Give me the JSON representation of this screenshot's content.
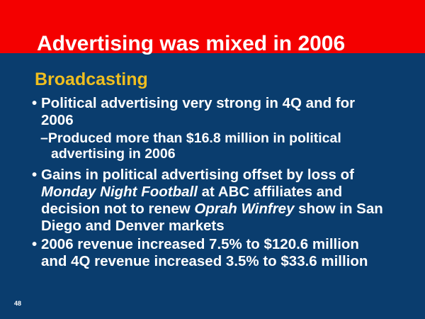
{
  "slide": {
    "title": "Advertising was mixed in 2006",
    "page_number": "48",
    "colors": {
      "banner_red": "#F40000",
      "background_navy": "#0A3D6E",
      "heading_gold": "#EFBE1F",
      "body_text": "#FFFFFF"
    }
  },
  "body": {
    "heading": "Broadcasting",
    "bullet_marker": "•",
    "content": [
      {
        "type": "bullet",
        "segments": [
          {
            "text": "Political advertising very strong in 4Q and for 2006",
            "italic": false
          }
        ]
      },
      {
        "type": "sub-bullet",
        "segments": [
          {
            "text": "–Produced more than $16.8 million in political advertising in 2006",
            "italic": false
          }
        ]
      },
      {
        "type": "bullet",
        "segments": [
          {
            "text": "Gains in political advertising offset by loss of ",
            "italic": false
          },
          {
            "text": "Monday Night Football",
            "italic": true
          },
          {
            "text": " at ABC affiliates and decision not to renew ",
            "italic": false
          },
          {
            "text": "Oprah Winfrey",
            "italic": true
          },
          {
            "text": " show in San Diego and Denver markets",
            "italic": false
          }
        ]
      },
      {
        "type": "bullet",
        "segments": [
          {
            "text": "2006 revenue increased 7.5% to $120.6 million and 4Q revenue increased 3.5% to $33.6 million",
            "italic": false
          }
        ]
      }
    ]
  }
}
